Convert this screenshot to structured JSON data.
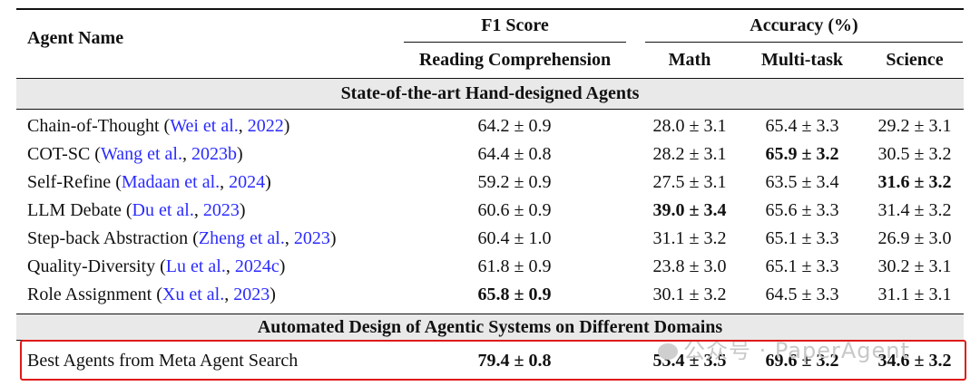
{
  "header": {
    "agent_name": "Agent Name",
    "f1_group": "F1 Score",
    "acc_group": "Accuracy (%)",
    "columns": [
      "Reading Comprehension",
      "Math",
      "Multi-task",
      "Science"
    ]
  },
  "sections": [
    {
      "title": "State-of-the-art Hand-designed Agents",
      "rows": [
        {
          "name": "Chain-of-Thought",
          "cite_author": "Wei et al.",
          "cite_year": "2022",
          "rc": "64.2 ± 0.9",
          "math": "28.0 ± 3.1",
          "mt": "65.4 ± 3.3",
          "sci": "29.2 ± 3.1"
        },
        {
          "name": "COT-SC",
          "cite_author": "Wang et al.",
          "cite_year": "2023b",
          "rc": "64.4 ± 0.8",
          "math": "28.2 ± 3.1",
          "mt": "65.9 ± 3.2",
          "sci": "30.5 ± 3.2"
        },
        {
          "name": "Self-Refine",
          "cite_author": "Madaan et al.",
          "cite_year": "2024",
          "rc": "59.2 ± 0.9",
          "math": "27.5 ± 3.1",
          "mt": "63.5 ± 3.4",
          "sci": "31.6 ± 3.2"
        },
        {
          "name": "LLM Debate",
          "cite_author": "Du et al.",
          "cite_year": "2023",
          "rc": "60.6 ± 0.9",
          "math": "39.0 ± 3.4",
          "mt": "65.6 ± 3.3",
          "sci": "31.4 ± 3.2"
        },
        {
          "name": "Step-back Abstraction",
          "cite_author": "Zheng et al.",
          "cite_year": "2023",
          "rc": "60.4 ± 1.0",
          "math": "31.1 ± 3.2",
          "mt": "65.1 ± 3.3",
          "sci": "26.9 ± 3.0"
        },
        {
          "name": "Quality-Diversity",
          "cite_author": "Lu et al.",
          "cite_year": "2024c",
          "rc": "61.8 ± 0.9",
          "math": "23.8 ± 3.0",
          "mt": "65.1 ± 3.3",
          "sci": "30.2 ± 3.1"
        },
        {
          "name": "Role Assignment",
          "cite_author": "Xu et al.",
          "cite_year": "2023",
          "rc": "65.8 ± 0.9",
          "math": "30.1 ± 3.2",
          "mt": "64.5 ± 3.3",
          "sci": "31.1 ± 3.1"
        }
      ]
    },
    {
      "title": "Automated Design of Agentic Systems on Different Domains",
      "rows": [
        {
          "name": "Best Agents from Meta Agent Search",
          "rc": "79.4 ± 0.8",
          "math": "53.4 ± 3.5",
          "mt": "69.6 ± 3.2",
          "sci": "34.6 ± 3.2"
        }
      ]
    }
  ],
  "watermark": "公众号 · PaperAgent",
  "colors": {
    "citation": "#2b2bff",
    "highlight_border": "#e01a1a",
    "section_bg": "#e9e9e9"
  }
}
